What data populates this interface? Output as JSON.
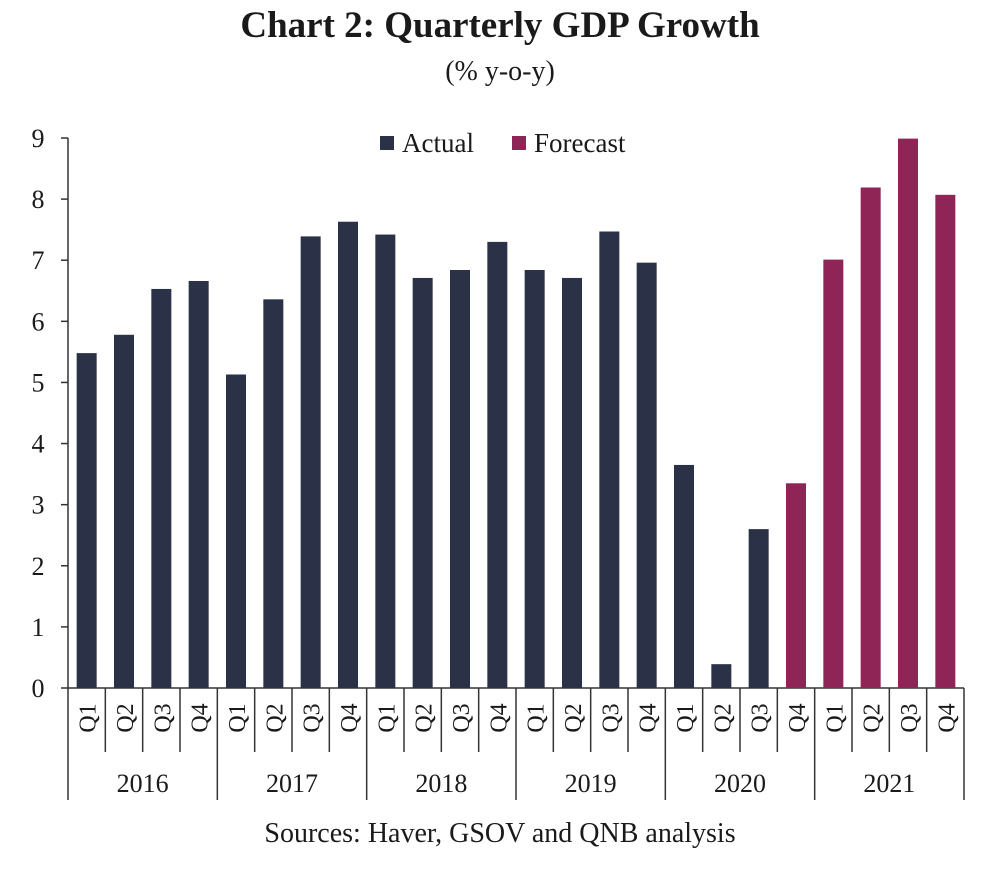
{
  "chart_data": {
    "type": "bar",
    "title": "Chart 2: Quarterly GDP Growth",
    "subtitle": "(% y-o-y)",
    "source": "Sources: Haver, GSOV and QNB analysis",
    "ylim": [
      0,
      9
    ],
    "yticks": [
      "0",
      "1",
      "2",
      "3",
      "4",
      "5",
      "6",
      "7",
      "8",
      "9"
    ],
    "legend": [
      {
        "label": "Actual",
        "color": "#2b3247"
      },
      {
        "label": "Forecast",
        "color": "#8f2557"
      }
    ],
    "years": [
      "2016",
      "2017",
      "2018",
      "2019",
      "2020",
      "2021"
    ],
    "quarters": [
      "Q1",
      "Q2",
      "Q3",
      "Q4"
    ],
    "values": [
      5.48,
      5.78,
      6.53,
      6.66,
      5.13,
      6.36,
      7.39,
      7.63,
      7.42,
      6.71,
      6.84,
      7.3,
      6.84,
      6.71,
      7.47,
      6.96,
      3.65,
      0.39,
      2.6,
      3.35,
      7.01,
      8.19,
      8.99,
      8.07
    ],
    "series_index": [
      0,
      0,
      0,
      0,
      0,
      0,
      0,
      0,
      0,
      0,
      0,
      0,
      0,
      0,
      0,
      0,
      0,
      0,
      0,
      1,
      1,
      1,
      1,
      1
    ]
  }
}
